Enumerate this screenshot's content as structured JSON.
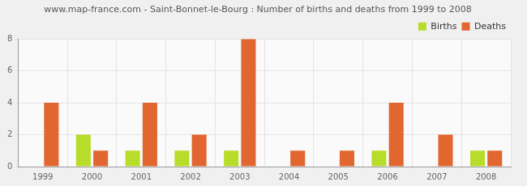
{
  "chart_data": {
    "type": "bar",
    "title": "www.map-france.com - Saint-Bonnet-le-Bourg : Number of births and deaths from 1999 to 2008",
    "categories": [
      "1999",
      "2000",
      "2001",
      "2002",
      "2003",
      "2004",
      "2005",
      "2006",
      "2007",
      "2008"
    ],
    "series": [
      {
        "name": "Births",
        "color": "#b8dc2a",
        "values": [
          0,
          2,
          1,
          1,
          1,
          0,
          0,
          1,
          0,
          1
        ]
      },
      {
        "name": "Deaths",
        "color": "#e2662f",
        "values": [
          4,
          1,
          4,
          2,
          8,
          1,
          1,
          4,
          2,
          1
        ]
      }
    ],
    "ylim": [
      0,
      8
    ],
    "yticks": [
      0,
      2,
      4,
      6,
      8
    ],
    "grid": true,
    "legend": "top-right"
  }
}
